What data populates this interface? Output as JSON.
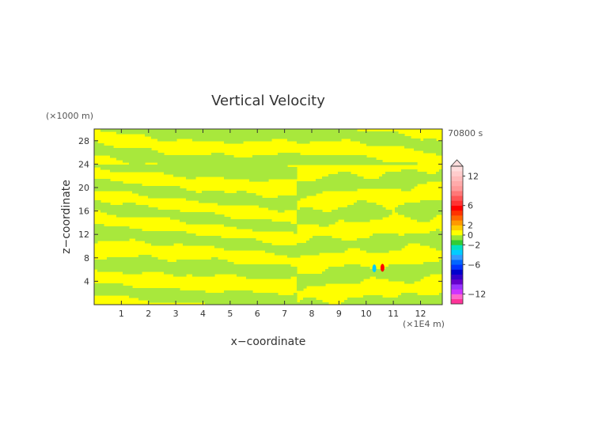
{
  "chart_data": {
    "type": "heatmap",
    "title": "Vertical Velocity",
    "xlabel": "x−coordinate",
    "ylabel": "z−coordinate",
    "x_unit": "(×1E4 m)",
    "y_unit": "(×1000 m)",
    "time_label": "70800 s",
    "xlim": [
      0,
      12.8
    ],
    "ylim": [
      0,
      30
    ],
    "x_ticks": [
      "1",
      "2",
      "3",
      "4",
      "5",
      "6",
      "7",
      "8",
      "9",
      "10",
      "11",
      "12"
    ],
    "y_ticks": [
      "4",
      "8",
      "12",
      "16",
      "20",
      "24",
      "28"
    ],
    "colorbar": {
      "range": [
        -14,
        14
      ],
      "labels": [
        "12",
        "6",
        "2",
        "0",
        "−2",
        "−6",
        "−12"
      ],
      "label_values": [
        12,
        6,
        2,
        0,
        -2,
        -6,
        -12
      ],
      "colors": [
        "#ff3399",
        "#ff66cc",
        "#cc33ff",
        "#9933ff",
        "#6600cc",
        "#3300cc",
        "#0000cc",
        "#0033ff",
        "#0066ff",
        "#3399ff",
        "#00ccff",
        "#00e0c0",
        "#33cc33",
        "#99e633",
        "#ffff00",
        "#ffcc00",
        "#ff9900",
        "#ff6600",
        "#ff3300",
        "#ff0000",
        "#ff3333",
        "#ff5555",
        "#ff7777",
        "#ff9999",
        "#ffaaaa",
        "#ffbbbb",
        "#ffcccc",
        "#ffdddd"
      ]
    },
    "field_colors": {
      "positive": "#ffff00",
      "negative": "#a8e83c"
    },
    "anomalies": [
      {
        "x": 10.3,
        "z": 6.2,
        "value": -4
      },
      {
        "x": 10.6,
        "z": 6.3,
        "value": 5
      }
    ]
  }
}
